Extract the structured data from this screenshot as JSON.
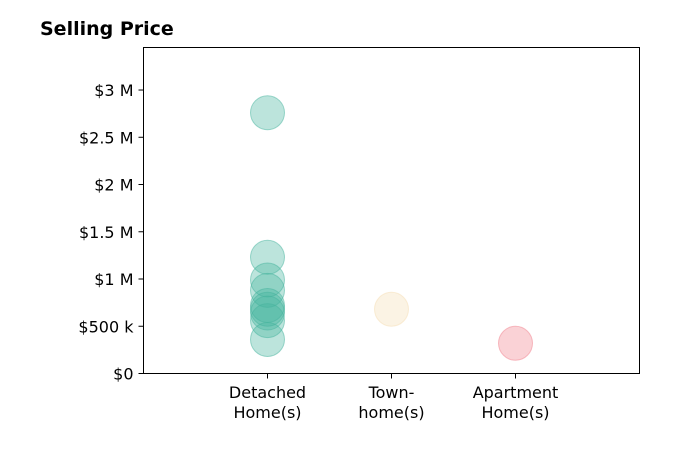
{
  "chart_data": {
    "type": "scatter",
    "title": "Selling Price",
    "xlabel": "",
    "ylabel": "",
    "categories": [
      [
        "Detached",
        "Home(s)"
      ],
      [
        "Town-",
        "home(s)"
      ],
      [
        "Apartment",
        "Home(s)"
      ]
    ],
    "y_ticks": [
      {
        "value": 0,
        "label": "$0"
      },
      {
        "value": 500000,
        "label": "$500 k"
      },
      {
        "value": 1000000,
        "label": "$1 M"
      },
      {
        "value": 1500000,
        "label": "$1.5 M"
      },
      {
        "value": 2000000,
        "label": "$2 M"
      },
      {
        "value": 2500000,
        "label": "$2.5 M"
      },
      {
        "value": 3000000,
        "label": "$3 M"
      }
    ],
    "ylim": [
      0,
      3450000
    ],
    "grid": false,
    "series": [
      {
        "category": "Detached Home(s)",
        "color": "#45B39D",
        "values": [
          2760000,
          1230000,
          990000,
          880000,
          720000,
          680000,
          640000,
          560000,
          360000
        ]
      },
      {
        "category": "Town-home(s)",
        "color": "#F5DEB3",
        "values": [
          680000
        ]
      },
      {
        "category": "Apartment Home(s)",
        "color": "#F1828D",
        "values": [
          320000
        ]
      }
    ]
  }
}
